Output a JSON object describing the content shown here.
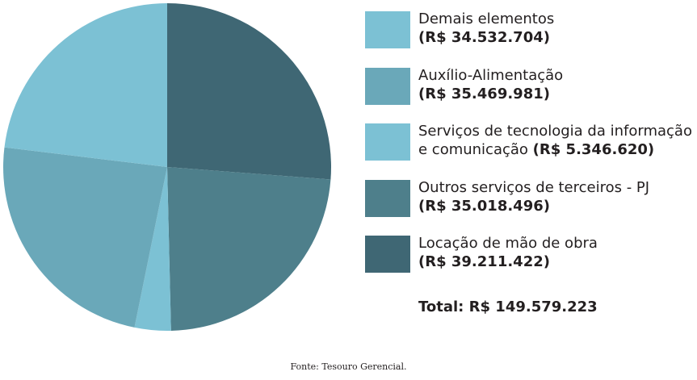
{
  "chart_data": {
    "type": "pie",
    "series": [
      {
        "name": "Demais elementos",
        "color": "#7cc1d4",
        "values": [
          34532704
        ],
        "value_labels": [
          "(R$ 34.532.704)"
        ]
      },
      {
        "name": "Auxílio-Alimentação",
        "color": "#6aa8b9",
        "values": [
          35469981
        ],
        "value_labels": [
          "(R$ 35.469.981)"
        ]
      },
      {
        "name": "Serviços de tecnologia da informação e comunicação",
        "color": "#7cc1d4",
        "values": [
          5346620
        ],
        "value_labels": [
          "(R$ 5.346.620)"
        ]
      },
      {
        "name": "Outros serviços de terceiros - PJ",
        "color": "#4e7f8b",
        "values": [
          35018496
        ],
        "value_labels": [
          "(R$ 35.018.496)"
        ]
      },
      {
        "name": "Locação de mão de obra",
        "color": "#3f6774",
        "values": [
          39211422
        ],
        "value_labels": [
          "(R$ 39.211.422)"
        ]
      }
    ],
    "total": "Total: R$ 149.579.223",
    "source": "Fonte:  Tesouro Gerencial."
  }
}
